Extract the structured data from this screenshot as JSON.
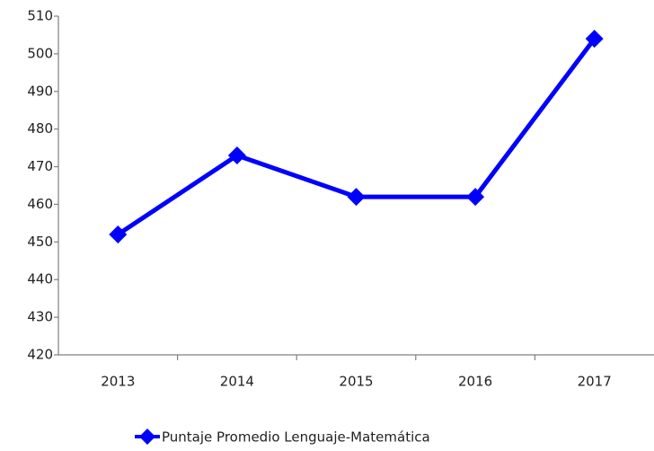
{
  "chart_data": {
    "type": "line",
    "categories": [
      "2013",
      "2014",
      "2015",
      "2016",
      "2017"
    ],
    "series": [
      {
        "name": "Puntaje Promedio Lenguaje-Matemática",
        "color": "#0000ff",
        "values": [
          452,
          473,
          462,
          462,
          504
        ]
      }
    ],
    "ylim": [
      420,
      510
    ],
    "yticks": [
      420,
      430,
      440,
      450,
      460,
      470,
      480,
      490,
      500,
      510
    ],
    "grid": false,
    "legend": "bottom"
  }
}
